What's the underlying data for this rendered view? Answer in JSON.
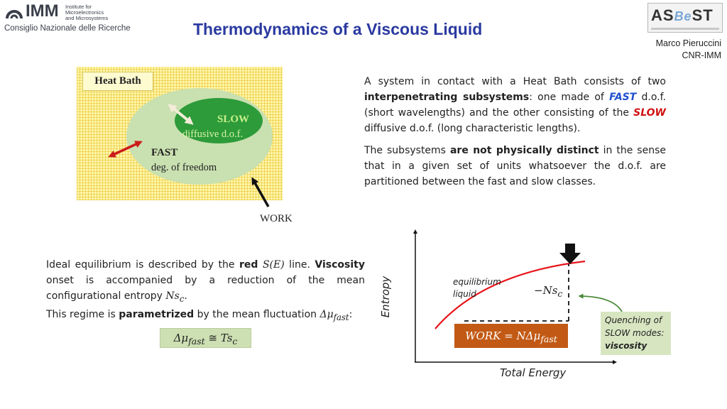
{
  "header": {
    "imm_logo_word": "IMM",
    "imm_logo_lines": [
      "Institute for",
      "Microelectronics",
      "and Microsystems"
    ],
    "cnr_text": "Consiglio Nazionale delle Ricerche",
    "title": "Thermodynamics of a Viscous Liquid",
    "asbest_logo": {
      "part1": "AS",
      "part2": "Be",
      "part3": "ST"
    },
    "author_name": "Marco Pieruccini",
    "author_affiliation": "CNR-IMM"
  },
  "diagram": {
    "heat_bath_label": "Heat Bath",
    "slow_title": "SLOW",
    "slow_subtitle": "diffusive d.o.f.",
    "fast_title": "FAST",
    "fast_subtitle": "deg. of freedom",
    "work_label": "WORK"
  },
  "text": {
    "p1": {
      "s1": "A system in contact with a Heat Bath consists of two ",
      "b1": "interpenetrating subsystems",
      "s2": ": one made of ",
      "fast": "FAST",
      "s3": " d.o.f. (short wavelengths) and the other consisting of the ",
      "slow": "SLOW",
      "s4": " diffusive d.o.f. (long characteristic lengths)."
    },
    "p2": {
      "s1": "The subsystems ",
      "b1": "are not physically distinct",
      "s2": " in the sense that in a given set of units whatsoever the d.o.f. are partitioned between the fast and slow classes."
    },
    "p3": {
      "s1": "Ideal equilibrium is described by the ",
      "red": "red",
      "m1": "S(E)",
      "s2": " line. ",
      "b1": "Viscosity",
      "s3": " onset is accompanied by a reduction of the mean configurational entropy ",
      "m2": "Ns",
      "m2sub": "c",
      "s4": ".",
      "s5": "This regime is ",
      "b2": "parametrized",
      "s6": " by the mean fluctuation ",
      "m3": "Δμ",
      "m3sub": "fast",
      "s7": ":"
    },
    "formula": {
      "lhs": "Δμ",
      "lhs_sub": "fast",
      "op": " ≅ ",
      "rhs": "Ts",
      "rhs_sub": "c"
    }
  },
  "plot": {
    "ylabel": "Entropy",
    "xlabel": "Total Energy",
    "eq_liquid_lines": [
      "equilibrium",
      "liquid"
    ],
    "nsc_label": "−Ns",
    "nsc_sub": "c",
    "work_box": {
      "text": "WORK = NΔμ",
      "sub": "fast"
    },
    "quench": {
      "line1": "Quenching of",
      "line2": "SLOW modes:",
      "bold": "viscosity"
    },
    "colors": {
      "curve": "#e8141a",
      "work_box": "#c25a15",
      "quench_box": "#d7e6c1",
      "callout_arrow": "#4a8a3a"
    }
  }
}
